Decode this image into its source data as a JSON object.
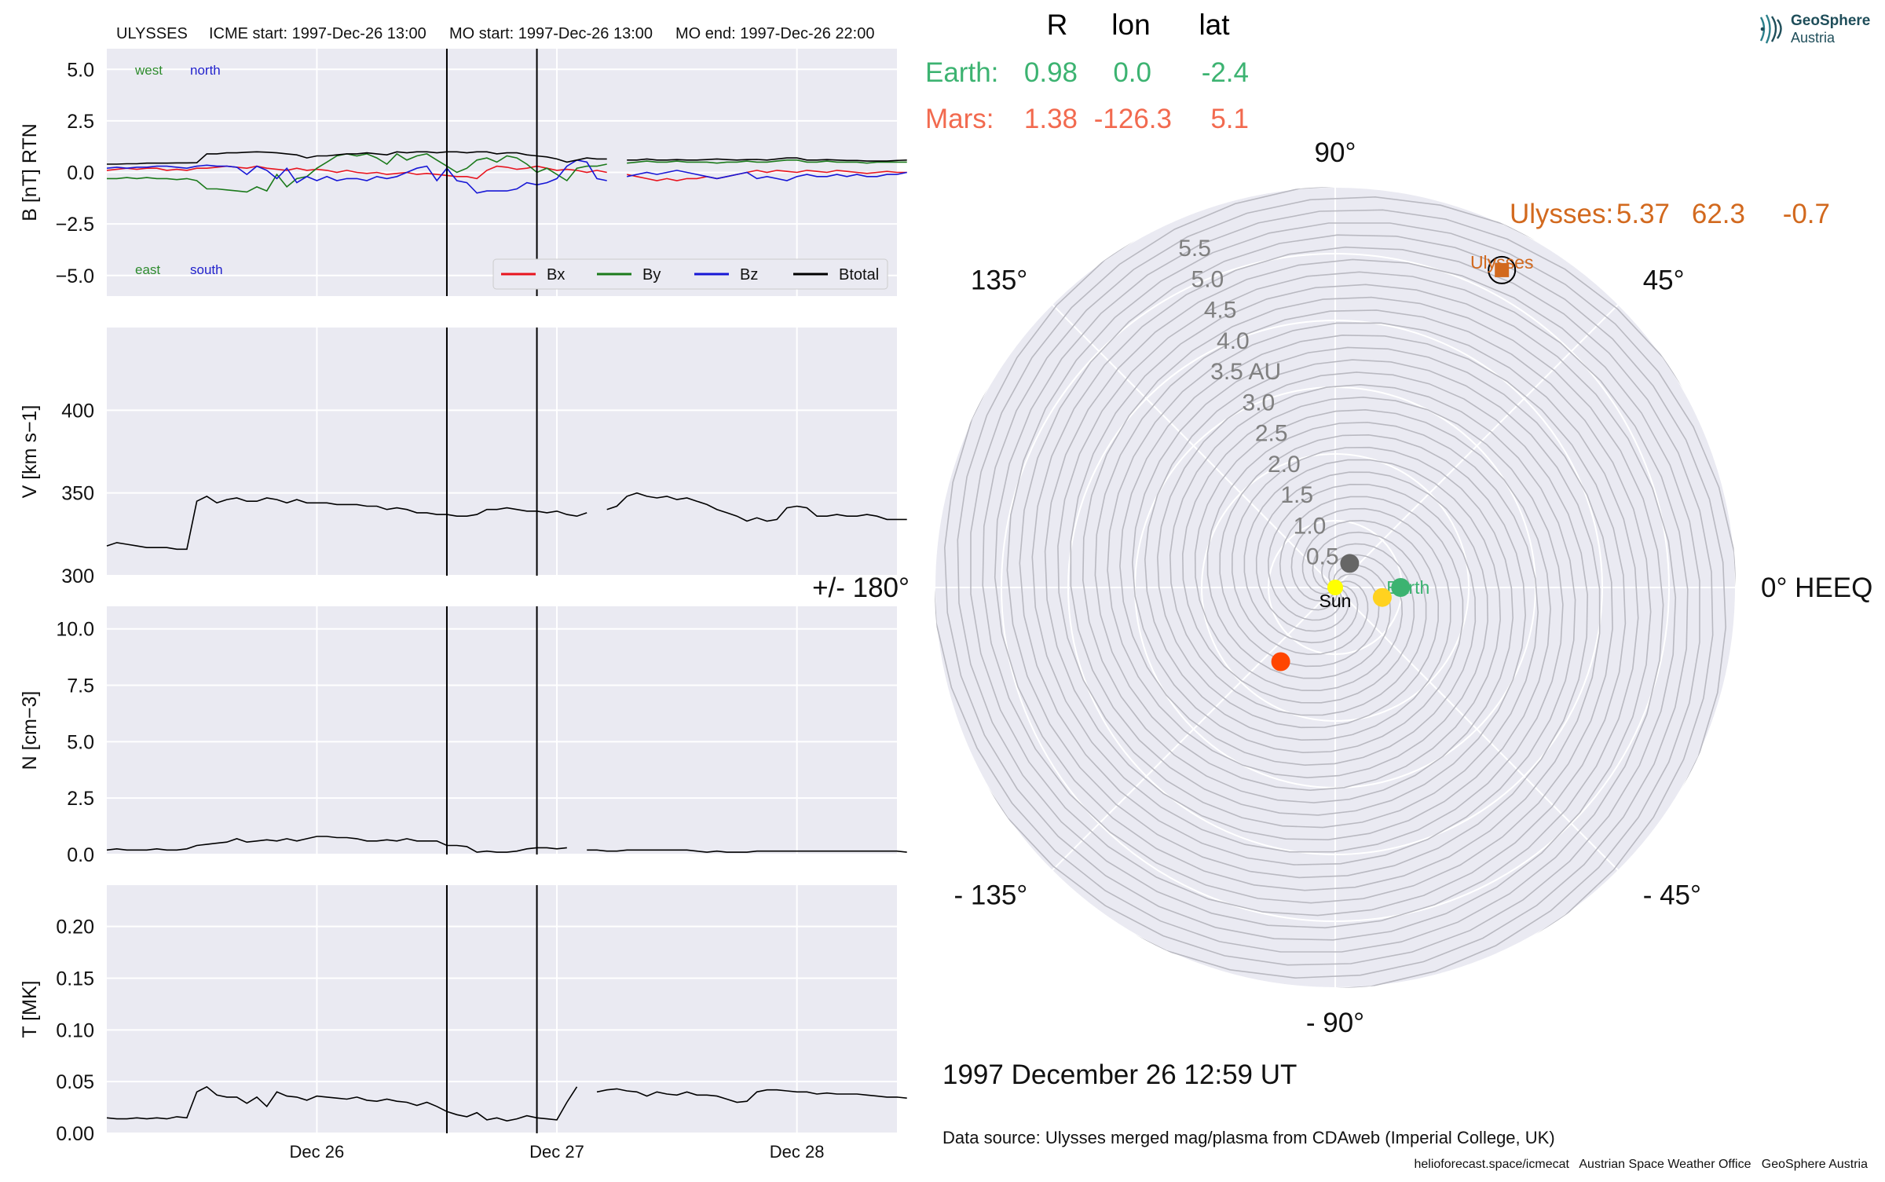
{
  "logo": {
    "line1": "GeoSphere",
    "line2": "Austria"
  },
  "chart_data": {
    "type": "line",
    "header": {
      "spacecraft": "ULYSSES",
      "icme_start": "ICME start: 1997-Dec-26 13:00",
      "mo_start": "MO start: 1997-Dec-26 13:00",
      "mo_end": "MO end: 1997-Dec-26 22:00"
    },
    "x_range": [
      "1997-12-25 03:00",
      "1997-12-28 10:00"
    ],
    "x_ticks": [
      {
        "t": "1997-12-26 00:00",
        "label": "Dec 26"
      },
      {
        "t": "1997-12-27 00:00",
        "label": "Dec 27"
      },
      {
        "t": "1997-12-28 00:00",
        "label": "Dec 28"
      }
    ],
    "event_lines": [
      "1997-12-26 13:00",
      "1997-12-26 22:00"
    ],
    "sample_step_hours": 1,
    "sample_start": "1997-12-25 03:00",
    "grid": true,
    "panels": [
      {
        "id": "b",
        "ylabel": "B [nT] RTN",
        "ylim": [
          -6,
          6
        ],
        "ticks": [
          -5,
          -2.5,
          0,
          2.5,
          5
        ],
        "tick_labels": [
          "−5.0",
          "−2.5",
          "0.0",
          "2.5",
          "5.0"
        ],
        "annotations": [
          {
            "text": "west",
            "color": "#2e8b2e",
            "pos": "top-left"
          },
          {
            "text": "north",
            "color": "#2222cc",
            "pos": "top-left"
          },
          {
            "text": "east",
            "color": "#2e8b2e",
            "pos": "bottom-left"
          },
          {
            "text": "south",
            "color": "#2222cc",
            "pos": "bottom-left"
          }
        ],
        "legend": {
          "placement": "lower-right",
          "entries": [
            "Bx",
            "By",
            "Bz",
            "Btotal"
          ]
        },
        "series": [
          {
            "name": "Bx",
            "color": "#e8141e",
            "values": [
              0.1,
              0.15,
              0.2,
              0.15,
              0.2,
              0.2,
              0.1,
              0.15,
              0.1,
              0.2,
              0.2,
              0.25,
              0.3,
              0.25,
              0.2,
              0.3,
              0.2,
              0.15,
              0.1,
              0.2,
              0.1,
              0.15,
              0.1,
              0.0,
              0.1,
              0.0,
              -0.05,
              0.0,
              -0.1,
              -0.05,
              0.0,
              -0.1,
              -0.05,
              -0.1,
              -0.15,
              -0.2,
              -0.2,
              -0.3,
              0.1,
              0.3,
              0.25,
              0.15,
              0.2,
              0.3,
              0.2,
              0.1,
              0.15,
              0.1,
              0.0,
              0.1,
              0.0,
              null,
              -0.1,
              -0.2,
              -0.3,
              -0.4,
              -0.3,
              -0.4,
              -0.3,
              -0.3,
              -0.2,
              -0.3,
              -0.2,
              -0.1,
              0.0,
              0.1,
              0.0,
              0.1,
              0.05,
              0.0,
              0.1,
              0.05,
              0.0,
              0.1,
              0.05,
              0.0,
              -0.05,
              0.0,
              0.05,
              0.0,
              0.0
            ]
          },
          {
            "name": "By",
            "color": "#1b7a1b",
            "values": [
              -0.3,
              -0.3,
              -0.25,
              -0.3,
              -0.25,
              -0.3,
              -0.3,
              -0.35,
              -0.3,
              -0.4,
              -0.8,
              -0.8,
              -0.85,
              -0.9,
              -0.95,
              -0.7,
              -0.9,
              -0.1,
              -0.7,
              -0.3,
              -0.2,
              0.2,
              0.5,
              0.8,
              0.9,
              0.8,
              0.9,
              0.7,
              0.4,
              0.9,
              0.6,
              0.8,
              0.9,
              0.6,
              0.3,
              0.0,
              0.2,
              0.6,
              0.7,
              0.5,
              0.8,
              0.7,
              0.4,
              0.0,
              0.2,
              -0.1,
              -0.4,
              0.2,
              0.3,
              0.3,
              0.4,
              null,
              0.45,
              0.5,
              0.55,
              0.5,
              0.5,
              0.55,
              0.5,
              0.5,
              0.5,
              0.45,
              0.5,
              0.5,
              0.55,
              0.5,
              0.5,
              0.55,
              0.6,
              0.6,
              0.5,
              0.5,
              0.55,
              0.5,
              0.5,
              0.5,
              0.45,
              0.5,
              0.5,
              0.5,
              0.5
            ]
          },
          {
            "name": "Bz",
            "color": "#1717d6",
            "values": [
              0.2,
              0.25,
              0.2,
              0.25,
              0.25,
              0.3,
              0.3,
              0.25,
              0.2,
              0.3,
              0.35,
              0.3,
              0.3,
              0.25,
              -0.1,
              0.3,
              0.1,
              -0.3,
              0.2,
              -0.5,
              -0.2,
              -0.4,
              -0.2,
              -0.4,
              -0.3,
              -0.3,
              -0.4,
              -0.2,
              -0.3,
              -0.2,
              0.0,
              0.2,
              0.3,
              -0.4,
              0.2,
              -0.4,
              -0.5,
              -1.0,
              -0.9,
              -0.9,
              -0.9,
              -0.8,
              -0.5,
              -0.6,
              -0.5,
              -0.3,
              0.3,
              0.6,
              0.5,
              -0.3,
              -0.4,
              null,
              -0.2,
              -0.1,
              0.0,
              -0.1,
              0.0,
              0.1,
              0.0,
              -0.1,
              -0.2,
              -0.3,
              -0.2,
              -0.1,
              0.0,
              -0.3,
              -0.2,
              -0.3,
              -0.4,
              -0.2,
              -0.1,
              -0.2,
              -0.2,
              -0.1,
              -0.2,
              -0.1,
              -0.2,
              -0.2,
              -0.1,
              -0.1,
              0.0
            ]
          },
          {
            "name": "Btotal",
            "color": "#000000",
            "values": [
              0.4,
              0.4,
              0.42,
              0.42,
              0.45,
              0.45,
              0.45,
              0.46,
              0.46,
              0.47,
              0.9,
              0.9,
              0.95,
              0.95,
              0.98,
              1.0,
              0.98,
              0.95,
              0.9,
              0.85,
              0.7,
              0.8,
              0.8,
              0.85,
              0.9,
              0.9,
              0.95,
              0.9,
              0.85,
              1.0,
              0.95,
              1.0,
              1.0,
              0.95,
              1.0,
              1.0,
              0.95,
              1.0,
              1.0,
              0.9,
              0.95,
              0.95,
              0.85,
              0.8,
              0.75,
              0.65,
              0.5,
              0.6,
              0.7,
              0.65,
              0.65,
              null,
              0.6,
              0.6,
              0.65,
              0.6,
              0.6,
              0.62,
              0.6,
              0.6,
              0.62,
              0.65,
              0.62,
              0.6,
              0.62,
              0.63,
              0.6,
              0.65,
              0.7,
              0.7,
              0.6,
              0.6,
              0.62,
              0.6,
              0.58,
              0.58,
              0.55,
              0.55,
              0.55,
              0.58,
              0.6
            ]
          }
        ]
      },
      {
        "id": "v",
        "ylabel": "V [km s−1]",
        "ylim": [
          300,
          450
        ],
        "ticks": [
          300,
          350,
          400
        ],
        "tick_labels": [
          "300",
          "350",
          "400"
        ],
        "series": [
          {
            "name": "",
            "color": "#000000",
            "values": [
              318,
              320,
              319,
              318,
              317,
              317,
              317,
              316,
              316,
              345,
              348,
              344,
              346,
              347,
              345,
              345,
              347,
              346,
              344,
              346,
              344,
              344,
              344,
              343,
              343,
              343,
              342,
              342,
              340,
              341,
              340,
              338,
              338,
              337,
              337,
              336,
              336,
              337,
              340,
              340,
              341,
              340,
              339,
              339,
              338,
              339,
              337,
              336,
              338,
              null,
              340,
              342,
              348,
              350,
              348,
              347,
              348,
              346,
              347,
              345,
              343,
              340,
              338,
              336,
              333,
              335,
              333,
              334,
              341,
              342,
              341,
              336,
              336,
              337,
              336,
              336,
              337,
              336,
              334,
              334,
              334
            ]
          }
        ]
      },
      {
        "id": "n",
        "ylabel": "N [cm−3]",
        "ylim": [
          0,
          11
        ],
        "ticks": [
          0,
          2.5,
          5,
          7.5,
          10
        ],
        "tick_labels": [
          "0.0",
          "2.5",
          "5.0",
          "7.5",
          "10.0"
        ],
        "series": [
          {
            "name": "",
            "color": "#000000",
            "values": [
              0.2,
              0.25,
              0.2,
              0.2,
              0.2,
              0.25,
              0.2,
              0.2,
              0.25,
              0.4,
              0.45,
              0.5,
              0.55,
              0.7,
              0.55,
              0.6,
              0.65,
              0.6,
              0.7,
              0.6,
              0.7,
              0.8,
              0.8,
              0.75,
              0.75,
              0.7,
              0.6,
              0.6,
              0.65,
              0.6,
              0.7,
              0.6,
              0.6,
              0.6,
              0.4,
              0.4,
              0.35,
              0.1,
              0.15,
              0.1,
              0.1,
              0.15,
              0.25,
              0.3,
              0.3,
              0.25,
              0.3,
              null,
              0.2,
              0.2,
              0.15,
              0.15,
              0.2,
              0.2,
              0.2,
              0.2,
              0.2,
              0.2,
              0.2,
              0.15,
              0.1,
              0.15,
              0.1,
              0.1,
              0.1,
              0.15,
              0.15,
              0.15,
              0.15,
              0.15,
              0.15,
              0.15,
              0.15,
              0.15,
              0.15,
              0.15,
              0.15,
              0.15,
              0.15,
              0.15,
              0.1
            ]
          }
        ]
      },
      {
        "id": "t",
        "ylabel": "T [MK]",
        "ylim": [
          0,
          0.24
        ],
        "ticks": [
          0,
          0.05,
          0.1,
          0.15,
          0.2
        ],
        "tick_labels": [
          "0.00",
          "0.05",
          "0.10",
          "0.15",
          "0.20"
        ],
        "series": [
          {
            "name": "",
            "color": "#000000",
            "values": [
              0.015,
              0.014,
              0.014,
              0.015,
              0.014,
              0.015,
              0.014,
              0.016,
              0.015,
              0.04,
              0.045,
              0.037,
              0.035,
              0.035,
              0.029,
              0.035,
              0.026,
              0.04,
              0.036,
              0.035,
              0.032,
              0.036,
              0.035,
              0.034,
              0.033,
              0.035,
              0.032,
              0.031,
              0.033,
              0.031,
              0.03,
              0.027,
              0.03,
              0.026,
              0.021,
              0.018,
              0.016,
              0.02,
              0.013,
              0.015,
              0.012,
              0.014,
              0.017,
              0.015,
              0.014,
              0.013,
              0.03,
              0.045,
              null,
              0.04,
              0.042,
              0.043,
              0.041,
              0.04,
              0.036,
              0.04,
              0.038,
              0.037,
              0.04,
              0.037,
              0.037,
              0.036,
              0.033,
              0.03,
              0.031,
              0.04,
              0.042,
              0.042,
              0.041,
              0.04,
              0.04,
              0.038,
              0.039,
              0.038,
              0.038,
              0.038,
              0.037,
              0.036,
              0.035,
              0.035,
              0.034
            ]
          }
        ]
      }
    ],
    "polar": {
      "type": "scatter",
      "coordinate": "polar",
      "table_headers": [
        "R",
        "lon",
        "lat"
      ],
      "bodies_table": [
        {
          "name": "Earth:",
          "R": "0.98",
          "lon": "0.0",
          "lat": "-2.4",
          "color": "#3cb371"
        },
        {
          "name": "Mars:",
          "R": "1.38",
          "lon": "-126.3",
          "lat": "5.1",
          "color": "#f26a4f"
        },
        {
          "name": "Ulysses:",
          "R": "5.37",
          "lon": "62.3",
          "lat": "-0.7",
          "color": "#d2691e"
        }
      ],
      "rmax": 6.0,
      "radial_ticks": [
        0.5,
        1.0,
        1.5,
        2.0,
        2.5,
        3.0,
        3.5,
        4.0,
        4.5,
        5.0,
        5.5
      ],
      "radial_labels": [
        "0.5",
        "1.0",
        "1.5",
        "2.0",
        "2.5",
        "3.0",
        "3.5 AU",
        "4.0",
        "4.5",
        "5.0",
        "5.5"
      ],
      "angle_labels": [
        {
          "deg": 0,
          "text": "0° HEEQ"
        },
        {
          "deg": 45,
          "text": "45°"
        },
        {
          "deg": 90,
          "text": "90°"
        },
        {
          "deg": 135,
          "text": "135°"
        },
        {
          "deg": 180,
          "text": "+/- 180°"
        },
        {
          "deg": -135,
          "text": "- 135°"
        },
        {
          "deg": -90,
          "text": "- 90°"
        },
        {
          "deg": -45,
          "text": "- 45°"
        }
      ],
      "spiral_count": 12,
      "points": [
        {
          "name": "Sun",
          "label": "Sun",
          "r": 0,
          "lon": 0,
          "color": "#ffff00",
          "marker": "circle"
        },
        {
          "name": "Earth",
          "label": "Earth",
          "r": 0.98,
          "lon": 0.0,
          "color": "#3cb371",
          "marker": "circle"
        },
        {
          "name": "Mars",
          "label": "",
          "r": 1.38,
          "lon": -126.3,
          "color": "#ff4500",
          "marker": "circle"
        },
        {
          "name": "Venus",
          "label": "",
          "r": 0.72,
          "lon": -12,
          "color": "#ffd21f",
          "marker": "circle"
        },
        {
          "name": "Mercury",
          "label": "",
          "r": 0.42,
          "lon": 59,
          "color": "#666666",
          "marker": "circle"
        },
        {
          "name": "Ulysses",
          "label": "Ulysses",
          "r": 5.37,
          "lon": 62.3,
          "color": "#d2691e",
          "marker": "square"
        }
      ],
      "date_text": "1997 December 26  12:59 UT"
    },
    "data_source": "Data source: Ulysses merged mag/plasma from CDAweb (Imperial College, UK)",
    "footer": "helioforecast.space/icmecat   Austrian Space Weather Office   GeoSphere Austria"
  }
}
